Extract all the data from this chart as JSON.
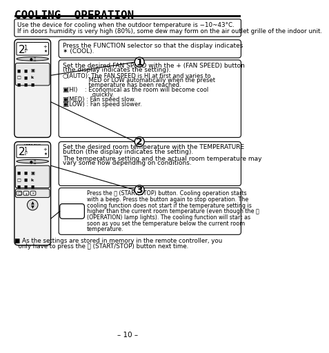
{
  "title": "COOLING  OPERATION",
  "bg_color": "#ffffff",
  "notice_text_1": "Use the device for cooling when the outdoor temperature is −10~43°C.",
  "notice_text_2": "If in doors humidity is very high (80%), some dew may form on the air outlet grille of the indoor unit.",
  "step1_line1": "Press the FUNCTION selector so that the display indicates",
  "step1_line2": "✶ (COOL).",
  "step2_line1": "Set the desired FAN SPEED with the + (FAN SPEED) button",
  "step2_line2": "(the display indicates the setting).",
  "step2_auto1": "   (AUTO): The FAN SPEED is HI at first and varies to",
  "step2_auto2": "               MED or LOW automatically when the preset",
  "step2_auto3": "               temperature has been reached.",
  "step2_hi1": "   (HI)    : Economical as the room will become cool",
  "step2_hi2": "               quickly.",
  "step2_med": "   (MED) : Fan speed slow.",
  "step2_low": "   (LOW) : Fan speed slower.",
  "step3_line1": "Set the desired room temperature with the TEMPERATURE",
  "step3_line2": "button (the display indicates the setting).",
  "step3_line3": "",
  "step3_line4": "The temperature setting and the actual room temperature may",
  "step3_line5": "vary some how depending on conditions.",
  "ss_line1": "Press the Ⓢ (START/STOP) button. Cooling operation starts",
  "ss_line2": "with a beep. Press the button again to stop operation. The",
  "ss_line3": "cooling function does not start if the temperature setting is",
  "ss_line4": "higher than the current room temperature (even though the Ⓢ",
  "ss_line5": "(OPERATION) lamp lights). The cooling function will start as",
  "ss_line6": "soon as you set the temperature below the current room",
  "ss_line7": "temperature.",
  "note1": "■ As the settings are stored in memory in the remote controller, you",
  "note2": "  only have to press the Ⓢ (START/STOP) button next time.",
  "footer": "– 10 –",
  "font_size_body": 6.5,
  "font_size_small": 6.0
}
